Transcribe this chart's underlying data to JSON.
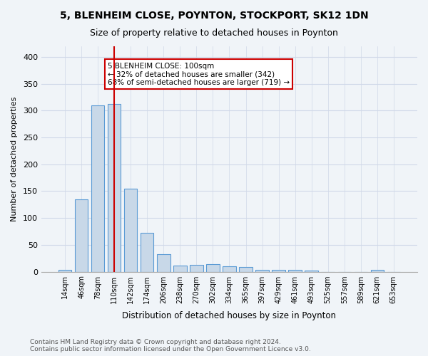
{
  "title1": "5, BLENHEIM CLOSE, POYNTON, STOCKPORT, SK12 1DN",
  "title2": "Size of property relative to detached houses in Poynton",
  "xlabel": "Distribution of detached houses by size in Poynton",
  "ylabel": "Number of detached properties",
  "categories": [
    "14sqm",
    "46sqm",
    "78sqm",
    "110sqm",
    "142sqm",
    "174sqm",
    "206sqm",
    "238sqm",
    "270sqm",
    "302sqm",
    "334sqm",
    "365sqm",
    "397sqm",
    "429sqm",
    "461sqm",
    "493sqm",
    "525sqm",
    "557sqm",
    "589sqm",
    "621sqm",
    "653sqm"
  ],
  "values": [
    4,
    135,
    310,
    313,
    155,
    72,
    33,
    11,
    13,
    14,
    10,
    8,
    4,
    3,
    3,
    2,
    0,
    0,
    0,
    3,
    0
  ],
  "bar_color": "#c8d8e8",
  "bar_edge_color": "#5b9bd5",
  "grid_color": "#d0d8e8",
  "property_line_x": 3,
  "property_line_color": "#cc0000",
  "annotation_text": "5 BLENHEIM CLOSE: 100sqm\n← 32% of detached houses are smaller (342)\n68% of semi-detached houses are larger (719) →",
  "annotation_box_color": "#ffffff",
  "annotation_box_edge": "#cc0000",
  "ylim": [
    0,
    420
  ],
  "yticks": [
    0,
    50,
    100,
    150,
    200,
    250,
    300,
    350,
    400
  ],
  "footer_text": "Contains HM Land Registry data © Crown copyright and database right 2024.\nContains public sector information licensed under the Open Government Licence v3.0.",
  "bg_color": "#f0f4f8",
  "plot_bg_color": "#f0f4f8"
}
